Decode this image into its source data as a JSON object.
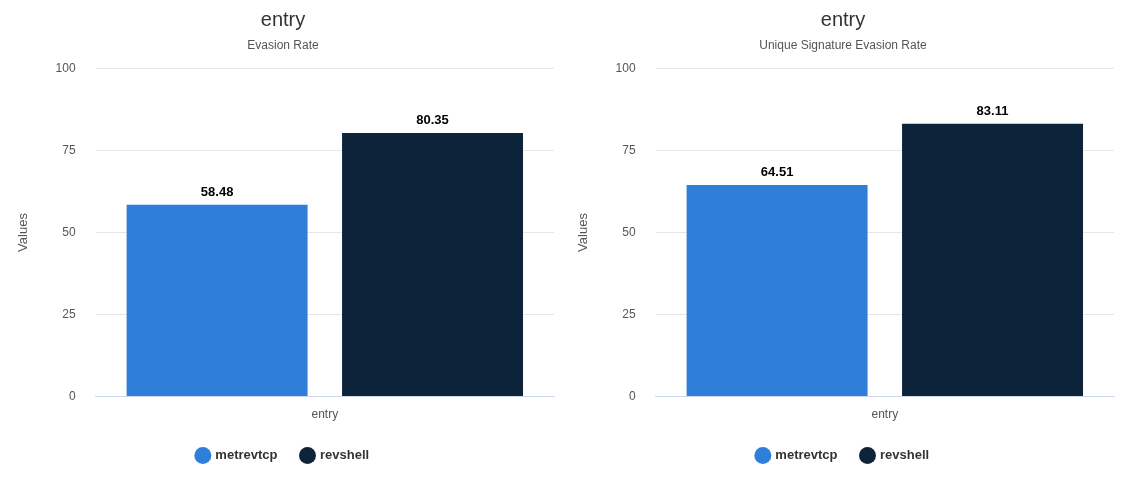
{
  "chart_data": [
    {
      "type": "bar",
      "title": "entry",
      "subtitle": "Evasion Rate",
      "ylabel": "Values",
      "categories": [
        "entry"
      ],
      "series": [
        {
          "name": "metrevtcp",
          "color": "#2f7ed8",
          "values": [
            58.48
          ]
        },
        {
          "name": "revshell",
          "color": "#0d233a",
          "values": [
            80.35
          ]
        }
      ],
      "ylim": [
        0,
        100
      ],
      "yticks": [
        0,
        25,
        50,
        75,
        100
      ],
      "grid": "y",
      "legend": "bottom",
      "data_labels": true
    },
    {
      "type": "bar",
      "title": "entry",
      "subtitle": "Unique Signature Evasion Rate",
      "ylabel": "Values",
      "categories": [
        "entry"
      ],
      "series": [
        {
          "name": "metrevtcp",
          "color": "#2f7ed8",
          "values": [
            64.51
          ]
        },
        {
          "name": "revshell",
          "color": "#0d233a",
          "values": [
            83.11
          ]
        }
      ],
      "ylim": [
        0,
        100
      ],
      "yticks": [
        0,
        25,
        50,
        75,
        100
      ],
      "grid": "y",
      "legend": "bottom",
      "data_labels": true
    }
  ]
}
